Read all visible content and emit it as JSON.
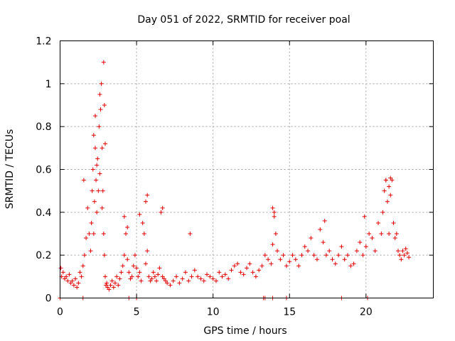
{
  "chart_data": {
    "type": "scatter",
    "title": "Day 051 of 2022, SRMTID for receiver poal",
    "xlabel": "GPS time / hours",
    "ylabel": "SRMTID / TECUs",
    "xlim": [
      0,
      24.4
    ],
    "ylim": [
      0,
      1.2
    ],
    "x_ticks": [
      0,
      5,
      10,
      15,
      20
    ],
    "x_tick_labels": [
      "0",
      "5",
      "10",
      "15",
      "20"
    ],
    "y_ticks": [
      0,
      0.2,
      0.4,
      0.6,
      0.8,
      1.0,
      1.2
    ],
    "y_tick_labels": [
      "0",
      "0.2",
      "0.4",
      "0.6",
      "0.8",
      "1",
      "1.2"
    ],
    "grid": true,
    "marker": "+",
    "color": "#e00000",
    "series": [
      {
        "name": "SRMTID",
        "x": [
          0.05,
          0.1,
          0.2,
          0.3,
          0.4,
          0.5,
          0.6,
          0.7,
          0.8,
          0.9,
          1.0,
          1.1,
          1.2,
          1.3,
          1.4,
          1.5,
          1.6,
          1.7,
          1.8,
          1.9,
          2.0,
          2.05,
          2.1,
          2.15,
          2.2,
          2.25,
          2.3,
          2.35,
          2.4,
          2.45,
          2.5,
          2.55,
          2.6,
          2.65,
          2.7,
          2.75,
          2.8,
          2.85,
          2.9,
          2.95,
          3.0,
          3.05,
          3.1,
          3.2,
          3.3,
          3.4,
          3.5,
          3.6,
          3.7,
          3.8,
          3.9,
          4.0,
          4.1,
          4.2,
          4.3,
          4.4,
          4.5,
          4.6,
          4.7,
          4.8,
          4.9,
          5.0,
          5.1,
          5.2,
          5.3,
          5.4,
          5.5,
          5.6,
          5.7,
          5.8,
          5.9,
          6.0,
          6.1,
          6.2,
          6.3,
          6.4,
          6.5,
          6.6,
          6.7,
          6.8,
          6.9,
          7.0,
          7.2,
          7.4,
          7.6,
          7.8,
          8.0,
          8.2,
          8.4,
          8.6,
          8.8,
          9.0,
          9.2,
          9.4,
          9.6,
          9.8,
          10.0,
          10.2,
          10.4,
          10.6,
          10.8,
          11.0,
          11.2,
          11.4,
          11.6,
          11.8,
          12.0,
          12.2,
          12.4,
          12.6,
          12.8,
          13.0,
          13.2,
          13.4,
          13.6,
          13.8,
          13.9,
          14.0,
          14.1,
          14.2,
          14.4,
          14.6,
          14.8,
          15.0,
          15.2,
          15.4,
          15.6,
          15.8,
          16.0,
          16.2,
          16.4,
          16.6,
          16.8,
          17.0,
          17.2,
          17.4,
          17.6,
          17.8,
          18.0,
          18.2,
          18.4,
          18.6,
          18.8,
          19.0,
          19.2,
          19.4,
          19.6,
          19.8,
          20.0,
          20.2,
          20.4,
          20.6,
          20.8,
          21.0,
          21.1,
          21.2,
          21.3,
          21.4,
          21.5,
          21.6,
          21.7,
          21.8,
          21.9,
          22.0,
          22.1,
          22.2,
          22.3,
          22.4,
          22.5,
          22.6,
          22.7,
          22.8,
          1.55,
          2.3,
          2.85,
          2.9,
          2.95,
          2.2,
          2.4,
          2.6,
          2.75,
          4.2,
          4.4,
          5.2,
          5.6,
          5.7,
          6.7,
          8.5,
          13.9,
          14.0,
          17.3,
          19.9,
          21.3,
          21.5,
          21.6,
          0.0,
          1.5,
          4.5,
          5.0,
          13.3,
          13.4,
          13.9,
          14.8,
          18.4,
          20.1
        ],
        "y": [
          0.14,
          0.1,
          0.12,
          0.09,
          0.1,
          0.08,
          0.11,
          0.07,
          0.08,
          0.06,
          0.09,
          0.05,
          0.07,
          0.12,
          0.1,
          0.15,
          0.2,
          0.28,
          0.42,
          0.3,
          0.22,
          0.35,
          0.5,
          0.6,
          0.3,
          0.45,
          0.7,
          0.55,
          0.4,
          0.65,
          0.5,
          0.8,
          0.95,
          0.88,
          1.0,
          0.7,
          0.5,
          0.3,
          0.2,
          0.1,
          0.06,
          0.07,
          0.05,
          0.04,
          0.06,
          0.08,
          0.05,
          0.07,
          0.1,
          0.06,
          0.09,
          0.12,
          0.15,
          0.2,
          0.3,
          0.18,
          0.12,
          0.09,
          0.1,
          0.15,
          0.2,
          0.14,
          0.1,
          0.12,
          0.08,
          0.35,
          0.3,
          0.16,
          0.22,
          0.1,
          0.08,
          0.09,
          0.12,
          0.1,
          0.08,
          0.11,
          0.14,
          0.4,
          0.1,
          0.09,
          0.08,
          0.07,
          0.06,
          0.08,
          0.1,
          0.07,
          0.09,
          0.12,
          0.08,
          0.1,
          0.13,
          0.1,
          0.09,
          0.08,
          0.11,
          0.1,
          0.09,
          0.08,
          0.12,
          0.1,
          0.11,
          0.09,
          0.13,
          0.15,
          0.16,
          0.12,
          0.11,
          0.14,
          0.16,
          0.12,
          0.1,
          0.13,
          0.15,
          0.2,
          0.18,
          0.16,
          0.25,
          0.4,
          0.3,
          0.22,
          0.18,
          0.2,
          0.15,
          0.17,
          0.2,
          0.18,
          0.15,
          0.2,
          0.24,
          0.22,
          0.28,
          0.2,
          0.18,
          0.32,
          0.26,
          0.2,
          0.22,
          0.18,
          0.16,
          0.2,
          0.24,
          0.18,
          0.2,
          0.15,
          0.16,
          0.22,
          0.26,
          0.2,
          0.24,
          0.3,
          0.28,
          0.22,
          0.35,
          0.3,
          0.4,
          0.5,
          0.55,
          0.45,
          0.3,
          0.48,
          0.55,
          0.35,
          0.28,
          0.3,
          0.22,
          0.2,
          0.18,
          0.22,
          0.2,
          0.23,
          0.21,
          0.19,
          0.55,
          0.85,
          1.1,
          0.9,
          0.72,
          0.76,
          0.62,
          0.58,
          0.42,
          0.38,
          0.33,
          0.39,
          0.45,
          0.48,
          0.42,
          0.3,
          0.42,
          0.38,
          0.36,
          0.38,
          0.55,
          0.52,
          0.56,
          0.0,
          0.0,
          0.0,
          0.0,
          0.0,
          0.0,
          0.0,
          0.0,
          0.0,
          0.0
        ]
      }
    ]
  }
}
